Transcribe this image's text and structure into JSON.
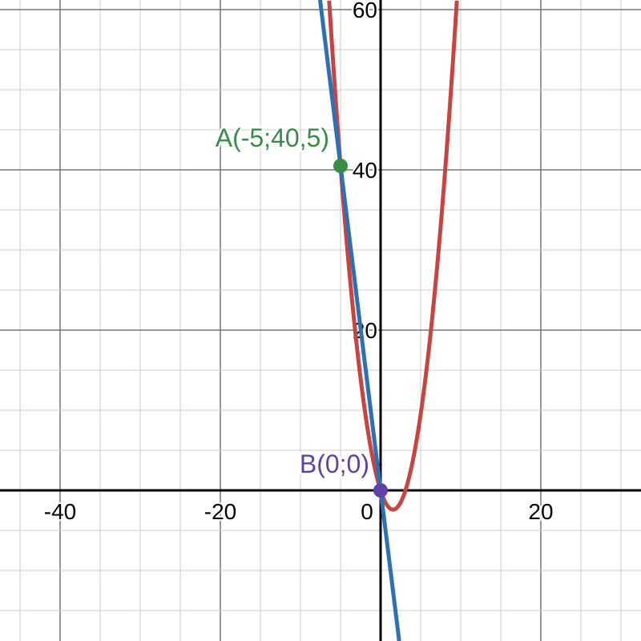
{
  "chart_data": {
    "type": "line",
    "title": "",
    "xlabel": "",
    "ylabel": "",
    "xlim": [
      -47.5,
      32.5
    ],
    "ylim": [
      -18.8,
      61.2
    ],
    "grid": true,
    "minor_grid_step": 5,
    "major_grid_step": 20,
    "x_ticks": [
      -40,
      -20,
      0,
      20
    ],
    "x_tick_labels": [
      "-40",
      "-20",
      "0",
      "20"
    ],
    "y_ticks": [
      20,
      40,
      60
    ],
    "y_tick_labels": [
      "20",
      "40",
      "60"
    ],
    "series": [
      {
        "type": "curve",
        "expression": "y = x^2 - 3.1x",
        "color": "#c74440"
      },
      {
        "type": "line",
        "expression": "y = -8.1x",
        "color": "#2d70b3"
      }
    ],
    "points": [
      {
        "label": "A(-5;40,5)",
        "x": -5,
        "y": 40.5,
        "color": "#388c46"
      },
      {
        "label": "B(0;0)",
        "x": 0,
        "y": 0,
        "color": "#6042a6"
      }
    ]
  }
}
